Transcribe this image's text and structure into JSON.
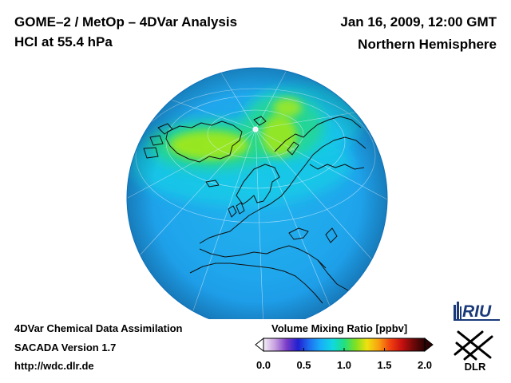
{
  "header": {
    "title_line1": "GOME–2 / MetOp – 4DVar Analysis",
    "title_line2": "HCl at 55.4 hPa",
    "date": "Jan 16, 2009, 12:00 GMT",
    "region": "Northern Hemisphere"
  },
  "footer": {
    "line1": "4DVar Chemical Data Assimilation",
    "line2": "SACADA Version 1.7",
    "url": "http://wdc.dlr.de"
  },
  "map": {
    "projection": "orthographic",
    "quantity": "HCl volume mixing ratio",
    "pressure_level": "55.4 hPa",
    "features": [
      "North Pole",
      "Greenland",
      "Scandinavia",
      "Europe",
      "North Africa",
      "Asia",
      "Arctic HCl maximum"
    ]
  },
  "colorbar": {
    "title": "Volume Mixing Ratio [ppbv]",
    "min": 0.0,
    "max": 2.0,
    "ticks": [
      "0.0",
      "0.5",
      "1.0",
      "1.5",
      "2.0"
    ],
    "colors": [
      "#f2eef8",
      "#c8a0e0",
      "#7a3cc8",
      "#2020d0",
      "#1e70f0",
      "#18b0f8",
      "#10d8e0",
      "#20e080",
      "#80e020",
      "#f0e010",
      "#f8a010",
      "#f04010",
      "#c81010",
      "#700808",
      "#2a0404"
    ]
  },
  "logos": {
    "riu": "RIU",
    "dlr": "DLR"
  }
}
